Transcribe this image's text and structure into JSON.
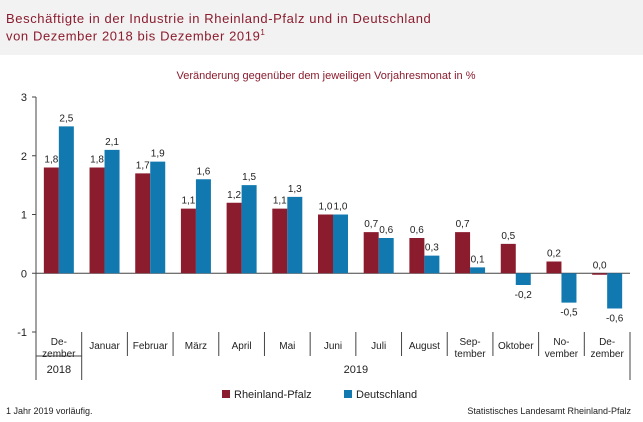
{
  "header": {
    "title_line1": "Beschäftigte in der Industrie in Rheinland-Pfalz und in Deutschland",
    "title_line2": "von Dezember 2018 bis Dezember 2019",
    "title_footnote_mark": "1"
  },
  "footer": {
    "footnote": "1 Jahr 2019 vorläufig.",
    "source": "Statistisches Landesamt Rheinland-Pfalz"
  },
  "colors": {
    "rheinland_pfalz": "#8b1c2e",
    "deutschland": "#1279b0",
    "title": "#8b1c2e"
  },
  "chart_data": {
    "type": "bar",
    "subtitle": "Veränderung gegenüber dem jeweiligen Vorjahresmonat in %",
    "categories": [
      [
        "De-",
        "zember"
      ],
      [
        "Januar"
      ],
      [
        "Februar"
      ],
      [
        "März"
      ],
      [
        "April"
      ],
      [
        "Mai"
      ],
      [
        "Juni"
      ],
      [
        "Juli"
      ],
      [
        "August"
      ],
      [
        "Sep-",
        "tember"
      ],
      [
        "Oktober"
      ],
      [
        "No-",
        "vember"
      ],
      [
        "De-",
        "zember"
      ]
    ],
    "year_groups": [
      {
        "label": "2018",
        "from": 0,
        "to": 0
      },
      {
        "label": "2019",
        "from": 1,
        "to": 12
      }
    ],
    "series": [
      {
        "name": "Rheinland-Pfalz",
        "values": [
          1.8,
          1.8,
          1.7,
          1.1,
          1.2,
          1.1,
          1.0,
          0.7,
          0.6,
          0.7,
          0.5,
          0.2,
          0.0
        ],
        "labels": [
          "1,8",
          "1,8",
          "1,7",
          "1,1",
          "1,2",
          "1,1",
          "1,0",
          "0,7",
          "0,6",
          "0,7",
          "0,5",
          "0,2",
          "0,0"
        ]
      },
      {
        "name": "Deutschland",
        "values": [
          2.5,
          2.1,
          1.9,
          1.6,
          1.5,
          1.3,
          1.0,
          0.6,
          0.3,
          0.1,
          -0.2,
          -0.5,
          -0.6
        ],
        "labels": [
          "2,5",
          "2,1",
          "1,9",
          "1,6",
          "1,5",
          "1,3",
          "1,0",
          "0,6",
          "0,3",
          "0,1",
          "-0,2",
          "-0,5",
          "-0,6"
        ]
      }
    ],
    "yticks": [
      -1,
      0,
      1,
      2,
      3
    ],
    "ylim": [
      -1,
      3
    ],
    "legend_position": "bottom"
  }
}
